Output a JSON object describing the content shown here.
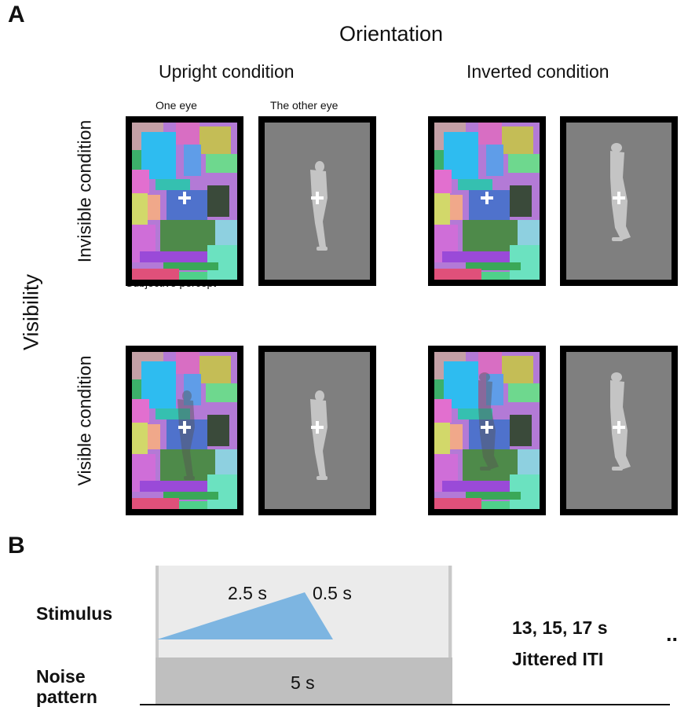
{
  "panel_a": {
    "label": "A",
    "orientation_title": "Orientation",
    "upright_title": "Upright condition",
    "inverted_title": "Inverted condition",
    "visibility_label": "Visibility",
    "invisible_label": "Invisible condition",
    "visible_label": "Visible condition",
    "one_eye_label": "One eye",
    "other_eye_label": "The other eye",
    "subjective_label": "Subjective percept"
  },
  "panel_b": {
    "label": "B",
    "stimulus_label": "Stimulus",
    "noise_label_line1": "Noise",
    "noise_label_line2": "pattern",
    "ramp_up": "2.5 s",
    "ramp_down": "0.5 s",
    "noise_duration": "5 s",
    "iti_values": "13, 15, 17 s",
    "iti_label": "Jittered ITI",
    "continuation": ".."
  },
  "colors": {
    "ramp_fill": "#7db5e1",
    "stimulus_bg": "#ebebeb",
    "noise_bg": "#bfbfbf",
    "gray_field": "#7f7f7f"
  }
}
